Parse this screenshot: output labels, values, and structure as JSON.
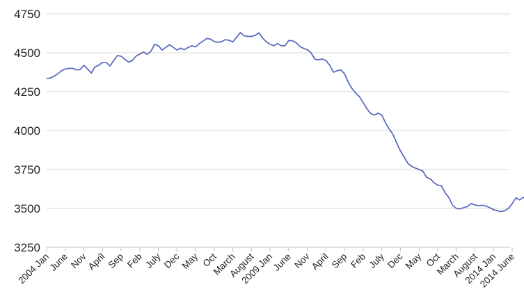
{
  "chart_data": {
    "type": "line",
    "title": "",
    "xlabel": "",
    "ylabel": "",
    "ylim": [
      3250,
      4750
    ],
    "yticks": [
      3250,
      3500,
      3750,
      4000,
      4250,
      4500,
      4750
    ],
    "ytick_labels": [
      "3250",
      "3500",
      "3750",
      "4000",
      "4250",
      "4500",
      "4750"
    ],
    "xticks": [
      {
        "month_index": 0,
        "label": "2004 Jan"
      },
      {
        "month_index": 5,
        "label": "June"
      },
      {
        "month_index": 10,
        "label": "Nov"
      },
      {
        "month_index": 15,
        "label": "April"
      },
      {
        "month_index": 20,
        "label": "Sep"
      },
      {
        "month_index": 25,
        "label": "Feb"
      },
      {
        "month_index": 30,
        "label": "July"
      },
      {
        "month_index": 35,
        "label": "Dec"
      },
      {
        "month_index": 40,
        "label": "May"
      },
      {
        "month_index": 45,
        "label": "Oct"
      },
      {
        "month_index": 50,
        "label": "March"
      },
      {
        "month_index": 55,
        "label": "August"
      },
      {
        "month_index": 60,
        "label": "2009 Jan"
      },
      {
        "month_index": 65,
        "label": "June"
      },
      {
        "month_index": 70,
        "label": "Nov"
      },
      {
        "month_index": 75,
        "label": "April"
      },
      {
        "month_index": 80,
        "label": "Sep"
      },
      {
        "month_index": 85,
        "label": "Feb"
      },
      {
        "month_index": 90,
        "label": "July"
      },
      {
        "month_index": 95,
        "label": "Dec"
      },
      {
        "month_index": 100,
        "label": "May"
      },
      {
        "month_index": 105,
        "label": "Oct"
      },
      {
        "month_index": 110,
        "label": "March"
      },
      {
        "month_index": 115,
        "label": "August"
      },
      {
        "month_index": 120,
        "label": "2014 Jan"
      },
      {
        "month_index": 125,
        "label": "2014 June"
      }
    ],
    "x_range": [
      0,
      126
    ],
    "grid": true,
    "legend": "none",
    "series": [
      {
        "color": "#5b6cbf",
        "points": [
          [
            0,
            4335
          ],
          [
            1,
            4338
          ],
          [
            2,
            4350
          ],
          [
            3,
            4365
          ],
          [
            4,
            4385
          ],
          [
            5,
            4395
          ],
          [
            6,
            4400
          ],
          [
            7,
            4400
          ],
          [
            8,
            4390
          ],
          [
            9,
            4392
          ],
          [
            10,
            4420
          ],
          [
            11,
            4395
          ],
          [
            12,
            4370
          ],
          [
            13,
            4410
          ],
          [
            14,
            4420
          ],
          [
            15,
            4438
          ],
          [
            16,
            4438
          ],
          [
            17,
            4415
          ],
          [
            18,
            4450
          ],
          [
            19,
            4482
          ],
          [
            20,
            4478
          ],
          [
            21,
            4458
          ],
          [
            22,
            4440
          ],
          [
            23,
            4450
          ],
          [
            24,
            4478
          ],
          [
            25,
            4492
          ],
          [
            26,
            4505
          ],
          [
            27,
            4490
          ],
          [
            28,
            4510
          ],
          [
            29,
            4555
          ],
          [
            30,
            4545
          ],
          [
            31,
            4518
          ],
          [
            32,
            4535
          ],
          [
            33,
            4552
          ],
          [
            34,
            4535
          ],
          [
            35,
            4518
          ],
          [
            36,
            4530
          ],
          [
            37,
            4520
          ],
          [
            38,
            4535
          ],
          [
            39,
            4545
          ],
          [
            40,
            4538
          ],
          [
            41,
            4560
          ],
          [
            42,
            4575
          ],
          [
            43,
            4592
          ],
          [
            44,
            4588
          ],
          [
            45,
            4572
          ],
          [
            46,
            4568
          ],
          [
            47,
            4572
          ],
          [
            48,
            4585
          ],
          [
            49,
            4580
          ],
          [
            50,
            4570
          ],
          [
            51,
            4600
          ],
          [
            52,
            4630
          ],
          [
            53,
            4610
          ],
          [
            54,
            4605
          ],
          [
            55,
            4605
          ],
          [
            56,
            4612
          ],
          [
            57,
            4628
          ],
          [
            58,
            4595
          ],
          [
            59,
            4570
          ],
          [
            60,
            4555
          ],
          [
            61,
            4545
          ],
          [
            62,
            4560
          ],
          [
            63,
            4545
          ],
          [
            64,
            4545
          ],
          [
            65,
            4578
          ],
          [
            66,
            4578
          ],
          [
            67,
            4565
          ],
          [
            68,
            4540
          ],
          [
            69,
            4528
          ],
          [
            70,
            4520
          ],
          [
            71,
            4500
          ],
          [
            72,
            4460
          ],
          [
            73,
            4455
          ],
          [
            74,
            4460
          ],
          [
            75,
            4450
          ],
          [
            76,
            4420
          ],
          [
            77,
            4375
          ],
          [
            78,
            4385
          ],
          [
            79,
            4390
          ],
          [
            80,
            4365
          ],
          [
            81,
            4310
          ],
          [
            82,
            4270
          ],
          [
            83,
            4240
          ],
          [
            84,
            4218
          ],
          [
            85,
            4180
          ],
          [
            86,
            4140
          ],
          [
            87,
            4110
          ],
          [
            88,
            4100
          ],
          [
            89,
            4112
          ],
          [
            90,
            4100
          ],
          [
            91,
            4050
          ],
          [
            92,
            4010
          ],
          [
            93,
            3975
          ],
          [
            94,
            3920
          ],
          [
            95,
            3870
          ],
          [
            96,
            3830
          ],
          [
            97,
            3790
          ],
          [
            98,
            3770
          ],
          [
            99,
            3760
          ],
          [
            100,
            3750
          ],
          [
            101,
            3740
          ],
          [
            102,
            3700
          ],
          [
            103,
            3690
          ],
          [
            104,
            3665
          ],
          [
            105,
            3650
          ],
          [
            106,
            3645
          ],
          [
            107,
            3600
          ],
          [
            108,
            3570
          ],
          [
            109,
            3520
          ],
          [
            110,
            3500
          ],
          [
            111,
            3497
          ],
          [
            112,
            3505
          ],
          [
            113,
            3512
          ],
          [
            114,
            3532
          ],
          [
            115,
            3522
          ],
          [
            116,
            3518
          ],
          [
            117,
            3520
          ],
          [
            118,
            3515
          ],
          [
            119,
            3505
          ],
          [
            120,
            3492
          ],
          [
            121,
            3485
          ],
          [
            122,
            3480
          ],
          [
            123,
            3485
          ],
          [
            124,
            3500
          ],
          [
            125,
            3530
          ],
          [
            126,
            3568
          ],
          [
            127,
            3555
          ],
          [
            128,
            3572
          ],
          [
            129,
            3560
          ],
          [
            130,
            3550
          ]
        ]
      }
    ]
  }
}
